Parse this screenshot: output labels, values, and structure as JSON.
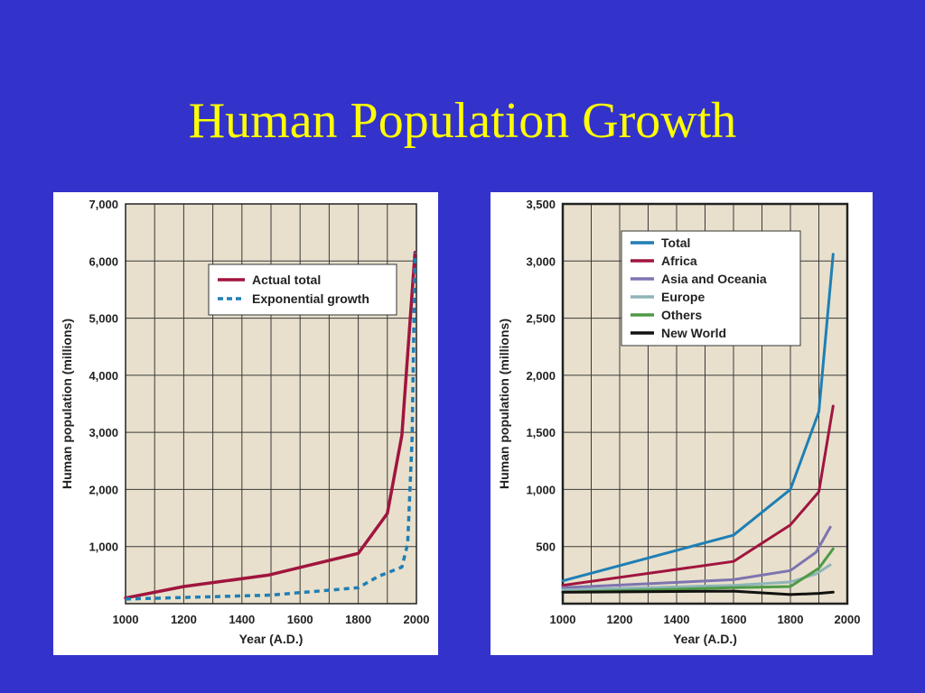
{
  "slide": {
    "title": "Human Population Growth"
  },
  "chart_data": [
    {
      "type": "line",
      "title": "",
      "xlabel": "Year (A.D.)",
      "ylabel": "Human population (millions)",
      "xlim": [
        1000,
        2000
      ],
      "ylim": [
        0,
        7000
      ],
      "x_ticks": [
        1000,
        1200,
        1400,
        1600,
        1800,
        2000
      ],
      "y_ticks": [
        1000,
        2000,
        3000,
        4000,
        5000,
        6000,
        7000
      ],
      "x_tick_labels": [
        "1000",
        "1200",
        "1400",
        "1600",
        "1800",
        "2000"
      ],
      "y_tick_labels": [
        "1,000",
        "2,000",
        "3,000",
        "4,000",
        "5,000",
        "6,000",
        "7,000"
      ],
      "grid": true,
      "legend": "top-right",
      "background": "#e8e0cc",
      "series": [
        {
          "name": "Actual total",
          "color": "#a0153e",
          "style": "solid",
          "x": [
            1000,
            1200,
            1490,
            1800,
            1900,
            1950,
            1995
          ],
          "y": [
            100,
            300,
            500,
            880,
            1580,
            2950,
            6150
          ]
        },
        {
          "name": "Exponential growth",
          "color": "#1f7fb5",
          "style": "dashed",
          "x": [
            1000,
            1500,
            1800,
            1870,
            1950,
            1970,
            1985,
            1995
          ],
          "y": [
            80,
            150,
            280,
            480,
            640,
            1050,
            2900,
            6150
          ]
        }
      ]
    },
    {
      "type": "line",
      "title": "",
      "xlabel": "Year (A.D.)",
      "ylabel": "Human population (millions)",
      "xlim": [
        1000,
        2000
      ],
      "ylim": [
        0,
        3500
      ],
      "x_ticks": [
        1000,
        1200,
        1400,
        1600,
        1800,
        2000
      ],
      "y_ticks": [
        500,
        1000,
        1500,
        2000,
        2500,
        3000,
        3500
      ],
      "x_tick_labels": [
        "1000",
        "1200",
        "1400",
        "1600",
        "1800",
        "2000"
      ],
      "y_tick_labels": [
        "500",
        "1,000",
        "1,500",
        "2,000",
        "2,500",
        "3,000",
        "3,500"
      ],
      "grid": true,
      "legend": "top-left",
      "background": "#e8e0cc",
      "series": [
        {
          "name": "Total",
          "color": "#1f7fb5",
          "style": "solid",
          "x": [
            1000,
            1600,
            1800,
            1900,
            1950
          ],
          "y": [
            200,
            600,
            1000,
            1680,
            3060
          ]
        },
        {
          "name": "Africa",
          "color": "#a0153e",
          "style": "solid",
          "x": [
            1000,
            1600,
            1800,
            1900,
            1950
          ],
          "y": [
            160,
            370,
            690,
            980,
            1730
          ]
        },
        {
          "name": "Asia and Oceania",
          "color": "#7e74b0",
          "style": "solid",
          "x": [
            1000,
            1600,
            1800,
            1890,
            1940
          ],
          "y": [
            140,
            210,
            290,
            450,
            670
          ]
        },
        {
          "name": "Europe",
          "color": "#8fb4b8",
          "style": "solid",
          "x": [
            1000,
            1600,
            1800,
            1890,
            1940
          ],
          "y": [
            120,
            160,
            190,
            260,
            340
          ]
        },
        {
          "name": "Others",
          "color": "#4e9a47",
          "style": "solid",
          "x": [
            1000,
            1600,
            1800,
            1900,
            1950
          ],
          "y": [
            100,
            140,
            150,
            310,
            480
          ]
        },
        {
          "name": "New World",
          "color": "#111111",
          "style": "solid",
          "x": [
            1000,
            1600,
            1800,
            1900,
            1950
          ],
          "y": [
            100,
            110,
            80,
            90,
            100
          ]
        }
      ]
    }
  ]
}
